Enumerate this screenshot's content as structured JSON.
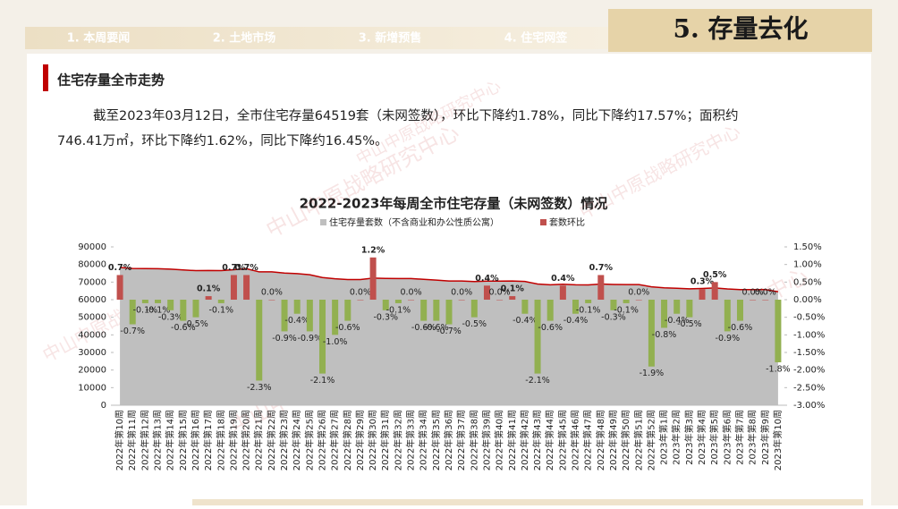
{
  "tabs": [
    "1. 本周要闻",
    "2. 土地市场",
    "3. 新增预售",
    "4. 住宅网签",
    "5. 存量去化"
  ],
  "section_title": "住宅存量全市走势",
  "paragraph": [
    "截至2023年03月12日，全市住宅存量64519套（未网签数），环比下降约1.78%，同比下降约17.57%；面积约",
    "746.41万㎡，环比下降约1.62%，同比下降约16.45%。"
  ],
  "watermark": "中山中原战略研究中心",
  "chart_data": {
    "type": "combo",
    "title": "2022-2023年每周全市住宅存量（未网签数）情况",
    "categories": [
      "2022年第10周",
      "2022年第11周",
      "2022年第12周",
      "2022年第13周",
      "2022年第14周",
      "2022年第15周",
      "2022年第16周",
      "2022年第17周",
      "2022年第18周",
      "2022年第19周",
      "2022年第20周",
      "2022年第21周",
      "2022年第22周",
      "2022年第23周",
      "2022年第24周",
      "2022年第25周",
      "2022年第26周",
      "2022年第27周",
      "2022年第28周",
      "2022年第29周",
      "2022年第30周",
      "2022年第31周",
      "2022年第32周",
      "2022年第33周",
      "2022年第34周",
      "2022年第35周",
      "2022年第36周",
      "2022年第37周",
      "2022年第38周",
      "2022年第39周",
      "2022年第40周",
      "2022年第41周",
      "2022年第42周",
      "2022年第43周",
      "2022年第44周",
      "2022年第45周",
      "2022年第46周",
      "2022年第47周",
      "2022年第48周",
      "2022年第49周",
      "2022年第50周",
      "2022年第51周",
      "2022年第52周",
      "2023年第1周",
      "2023年第2周",
      "2023年第3周",
      "2023年第4周",
      "2023年第5周",
      "2023年第6周",
      "2023年第7周",
      "2023年第8周",
      "2023年第9周",
      "2023年第10周"
    ],
    "series": [
      {
        "name": "住宅存量套数（不含商业和办公性质公寓）",
        "type": "area",
        "color": "#bfbfbf",
        "line_color": "#c00000",
        "axis": "y",
        "values": [
          78300,
          77750,
          77670,
          77590,
          77360,
          76900,
          76510,
          76590,
          76510,
          77050,
          77590,
          75800,
          75800,
          75120,
          74820,
          74150,
          72590,
          71870,
          71440,
          71440,
          72290,
          72070,
          72000,
          72000,
          71570,
          71140,
          70640,
          70640,
          70290,
          70570,
          70570,
          70640,
          70360,
          68880,
          68470,
          68740,
          68470,
          68400,
          68880,
          68670,
          68600,
          68600,
          67300,
          66760,
          66490,
          66160,
          66360,
          66690,
          66090,
          65690,
          65690,
          65690,
          64519
        ]
      },
      {
        "name": "套数环比",
        "type": "bar",
        "color": "#c0504d",
        "negative_color": "#92b050",
        "axis": "y2",
        "values": [
          0.7,
          -0.7,
          -0.1,
          -0.1,
          -0.3,
          -0.6,
          -0.5,
          0.1,
          -0.1,
          0.7,
          0.7,
          -2.3,
          0,
          -0.9,
          -0.4,
          -0.9,
          -2.1,
          -1.0,
          -0.6,
          0,
          1.2,
          -0.3,
          -0.1,
          0,
          -0.6,
          -0.6,
          -0.7,
          0,
          -0.5,
          0.4,
          0,
          0.1,
          -0.4,
          -2.1,
          -0.6,
          0.4,
          -0.4,
          -0.1,
          0.7,
          -0.3,
          -0.1,
          0,
          -1.9,
          -0.8,
          -0.4,
          -0.5,
          0.3,
          0.5,
          -0.9,
          -0.6,
          0,
          0,
          -1.78
        ],
        "value_labels": [
          "0.7%",
          "-0.7%",
          "-0.1%",
          "-0.1%",
          "-0.3%",
          "-0.6%",
          "-0.5%",
          "0.1%",
          "-0.1%",
          "0.7%",
          "0.7%",
          "-2.3%",
          "0.0%",
          "-0.9%",
          "-0.4%",
          "-0.9%",
          "-2.1%",
          "-1.0%",
          "-0.6%",
          "0.0%",
          "1.2%",
          "-0.3%",
          "-0.1%",
          "0.0%",
          "-0.6%",
          "-0.6%",
          "-0.7%",
          "0.0%",
          "-0.5%",
          "0.4%",
          "0.0%",
          "0.1%",
          "-0.4%",
          "-2.1%",
          "-0.6%",
          "0.4%",
          "-0.4%",
          "-0.1%",
          "0.7%",
          "-0.3%",
          "-0.1%",
          "0.0%",
          "-1.9%",
          "-0.8%",
          "-0.4%",
          "-0.5%",
          "0.3%",
          "0.5%",
          "-0.9%",
          "-0.6%",
          "0.0%",
          "0.0%",
          "-1.8%"
        ]
      }
    ],
    "ylim": [
      0,
      90000
    ],
    "yticks": [
      0,
      10000,
      20000,
      30000,
      40000,
      50000,
      60000,
      70000,
      80000,
      90000
    ],
    "y2lim": [
      -3,
      1.5
    ],
    "y2ticks": [
      {
        "value": -3,
        "label": "-3.00%"
      },
      {
        "value": -2.5,
        "label": "-2.50%"
      },
      {
        "value": -2,
        "label": "-2.00%"
      },
      {
        "value": -1.5,
        "label": "-1.50%"
      },
      {
        "value": -1,
        "label": "-1.00%"
      },
      {
        "value": -0.5,
        "label": "-0.50%"
      },
      {
        "value": 0,
        "label": "0.00%"
      },
      {
        "value": 0.5,
        "label": "0.50%"
      },
      {
        "value": 1,
        "label": "1.00%"
      },
      {
        "value": 1.5,
        "label": "1.50%"
      }
    ],
    "legend": "top",
    "grid": false
  }
}
